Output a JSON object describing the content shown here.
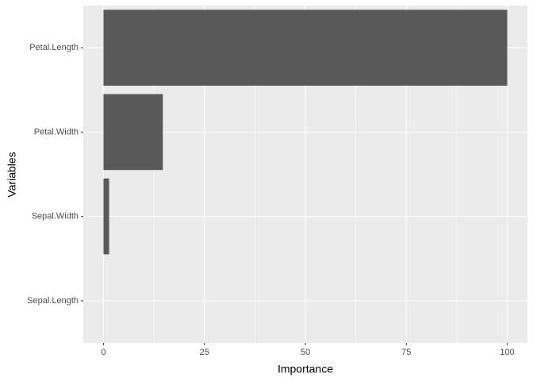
{
  "chart_data": {
    "type": "bar",
    "orientation": "horizontal",
    "x_label": "Importance",
    "y_label": "Variables",
    "categories": [
      "Petal.Length",
      "Petal.Width",
      "Sepal.Width",
      "Sepal.Length"
    ],
    "values": [
      100,
      14.7,
      1.4,
      0
    ],
    "color": "#595959",
    "xlim": [
      -5,
      105
    ],
    "xticks": [
      0,
      25,
      50,
      75,
      100
    ],
    "grid": true
  }
}
